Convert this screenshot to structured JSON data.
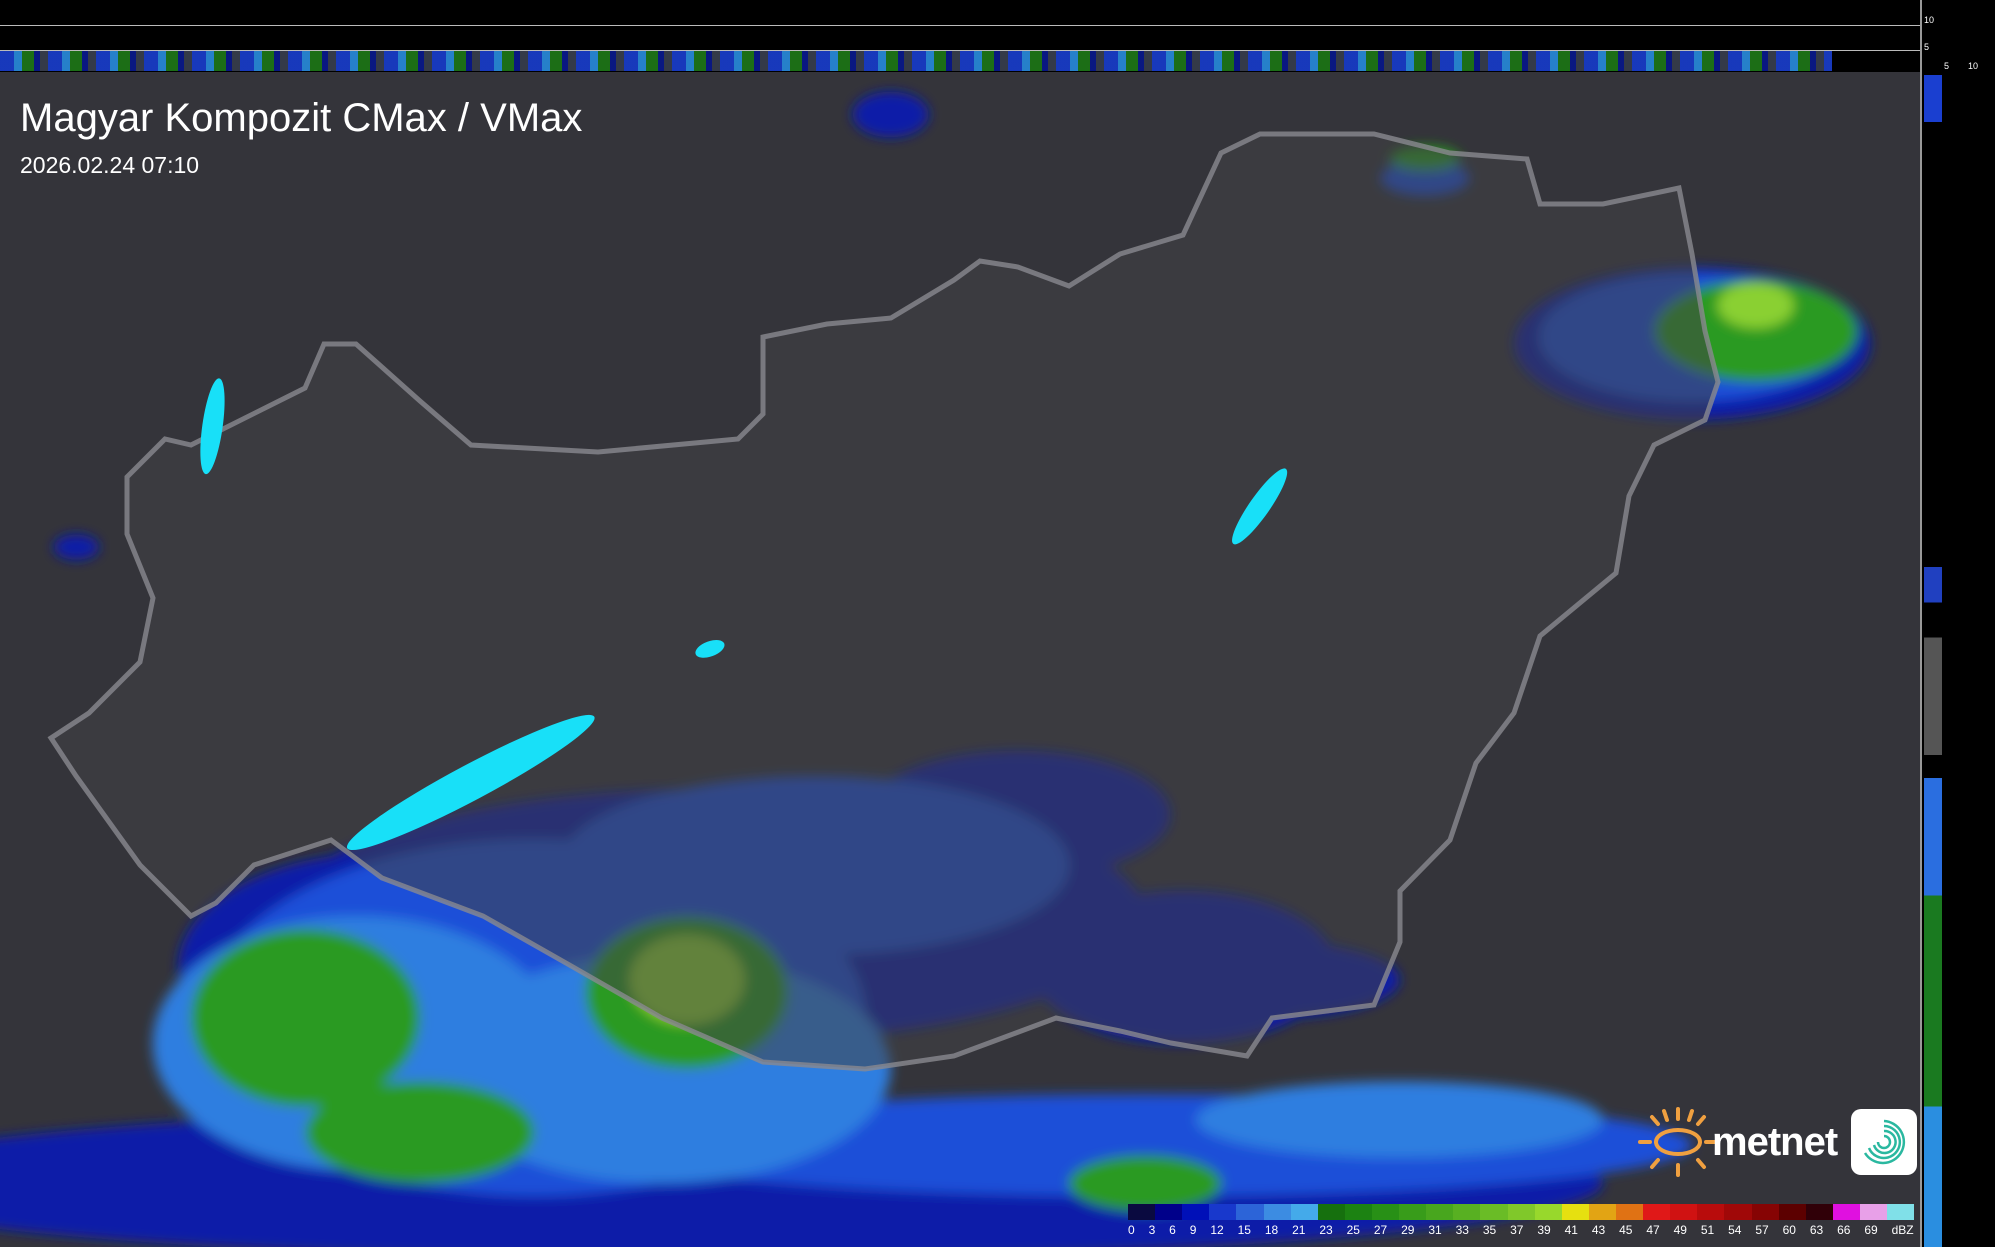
{
  "header": {
    "title": "Magyar Kompozit CMax / VMax",
    "timestamp": "2026.02.24 07:10"
  },
  "side_profile": {
    "height_ticks": [
      "10",
      "5"
    ],
    "range_ticks": [
      "5",
      "10"
    ]
  },
  "legend": {
    "labels": [
      "0",
      "3",
      "6",
      "9",
      "12",
      "15",
      "18",
      "21",
      "23",
      "25",
      "27",
      "29",
      "31",
      "33",
      "35",
      "37",
      "39",
      "41",
      "43",
      "45",
      "47",
      "49",
      "51",
      "54",
      "57",
      "60",
      "63",
      "66",
      "69"
    ],
    "unit": "dBZ",
    "colors": [
      "#0a0a40",
      "#00008a",
      "#0010b8",
      "#1838cc",
      "#2c64d8",
      "#3c8ce2",
      "#44aaea",
      "#16700e",
      "#1c8212",
      "#289016",
      "#389c1a",
      "#48a61e",
      "#58b022",
      "#6abc26",
      "#80c82a",
      "#98d82c",
      "#e6e010",
      "#e2a414",
      "#e07214",
      "#e01818",
      "#d01212",
      "#b80c0c",
      "#a00808",
      "#860404",
      "#5c0000",
      "#300008",
      "#e010e0",
      "#e8a0e8",
      "#80e0e8"
    ]
  },
  "logo": {
    "brand": "metnet"
  }
}
